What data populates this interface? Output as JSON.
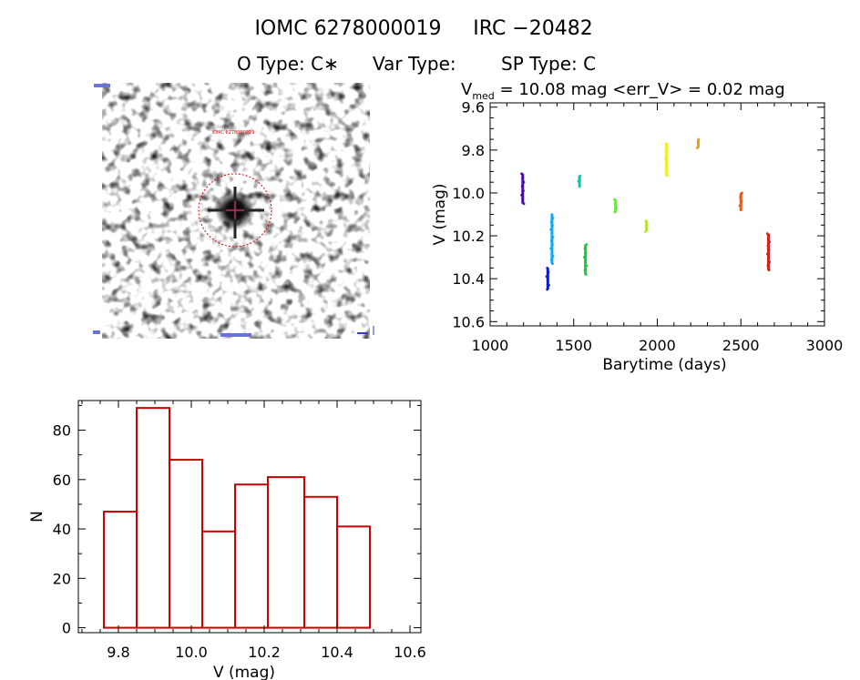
{
  "header": {
    "line1_left": "IOMC 6278000019",
    "line1_right": "IRC −20482",
    "line2_otype": "O Type: C∗",
    "line2_vartype": "Var Type:",
    "line2_sptype": "SP Type: C"
  },
  "image_panel": {
    "description_name": "star-field-cutout",
    "marker_label": "IOMC 6278000019"
  },
  "chart_data": [
    {
      "type": "scatter",
      "title_prefix": "V",
      "title_subscript": "med",
      "title_rest": " = 10.08 mag <err_V> = 0.02 mag",
      "xlabel": "Barytime (days)",
      "ylabel": "V (mag)",
      "xlim": [
        1000,
        3000
      ],
      "ylim": [
        10.62,
        9.58
      ],
      "x_ticks": [
        1000,
        1500,
        2000,
        2500,
        3000
      ],
      "x_tick_labels": [
        "1000",
        "1500",
        "2000",
        "2500",
        "3000"
      ],
      "y_ticks": [
        9.6,
        9.8,
        10.0,
        10.2,
        10.4,
        10.6
      ],
      "y_tick_labels": [
        "9.6",
        "9.8",
        "10.0",
        "10.2",
        "10.4",
        "10.6"
      ],
      "series": [
        {
          "name": "s1",
          "color": "#4b0aa8",
          "x": 1195,
          "v_top": 9.91,
          "v_bot": 10.05
        },
        {
          "name": "s2",
          "color": "#0a1ecc",
          "x": 1345,
          "v_top": 10.35,
          "v_bot": 10.45
        },
        {
          "name": "s3",
          "color": "#12a9f0",
          "x": 1370,
          "v_top": 10.1,
          "v_bot": 10.33
        },
        {
          "name": "s4",
          "color": "#00c8b4",
          "x": 1535,
          "v_top": 9.92,
          "v_bot": 9.97
        },
        {
          "name": "s5",
          "color": "#18cc3c",
          "x": 1570,
          "v_top": 10.24,
          "v_bot": 10.38
        },
        {
          "name": "s6",
          "color": "#6ee63a",
          "x": 1750,
          "v_top": 10.03,
          "v_bot": 10.09
        },
        {
          "name": "s7",
          "color": "#b4e632",
          "x": 1935,
          "v_top": 10.13,
          "v_bot": 10.18
        },
        {
          "name": "s8",
          "color": "#f0f01e",
          "x": 2055,
          "v_top": 9.77,
          "v_bot": 9.92
        },
        {
          "name": "s9",
          "color": "#e6a01e",
          "x": 2245,
          "v_top": 9.75,
          "v_bot": 9.79
        },
        {
          "name": "s10",
          "color": "#e65a1e",
          "x": 2500,
          "v_top": 10.0,
          "v_bot": 10.08
        },
        {
          "name": "s11",
          "color": "#dc1e1e",
          "x": 2665,
          "v_top": 10.19,
          "v_bot": 10.36
        }
      ]
    },
    {
      "type": "bar",
      "subtype": "histogram",
      "xlabel": "V (mag)",
      "ylabel": "N",
      "xlim": [
        9.69,
        10.63
      ],
      "ylim": [
        -2,
        92
      ],
      "bar_color": "#cc0000",
      "bin_edges": [
        9.76,
        9.85,
        9.94,
        10.03,
        10.12,
        10.21,
        10.31,
        10.4,
        10.49
      ],
      "values": [
        47,
        89,
        68,
        39,
        58,
        61,
        53,
        41
      ],
      "x_ticks": [
        9.8,
        10.0,
        10.2,
        10.4,
        10.6
      ],
      "x_tick_labels": [
        "9.8",
        "10.0",
        "10.2",
        "10.4",
        "10.6"
      ],
      "y_ticks": [
        0,
        20,
        40,
        60,
        80
      ],
      "y_tick_labels": [
        "0",
        "20",
        "40",
        "60",
        "80"
      ]
    }
  ]
}
